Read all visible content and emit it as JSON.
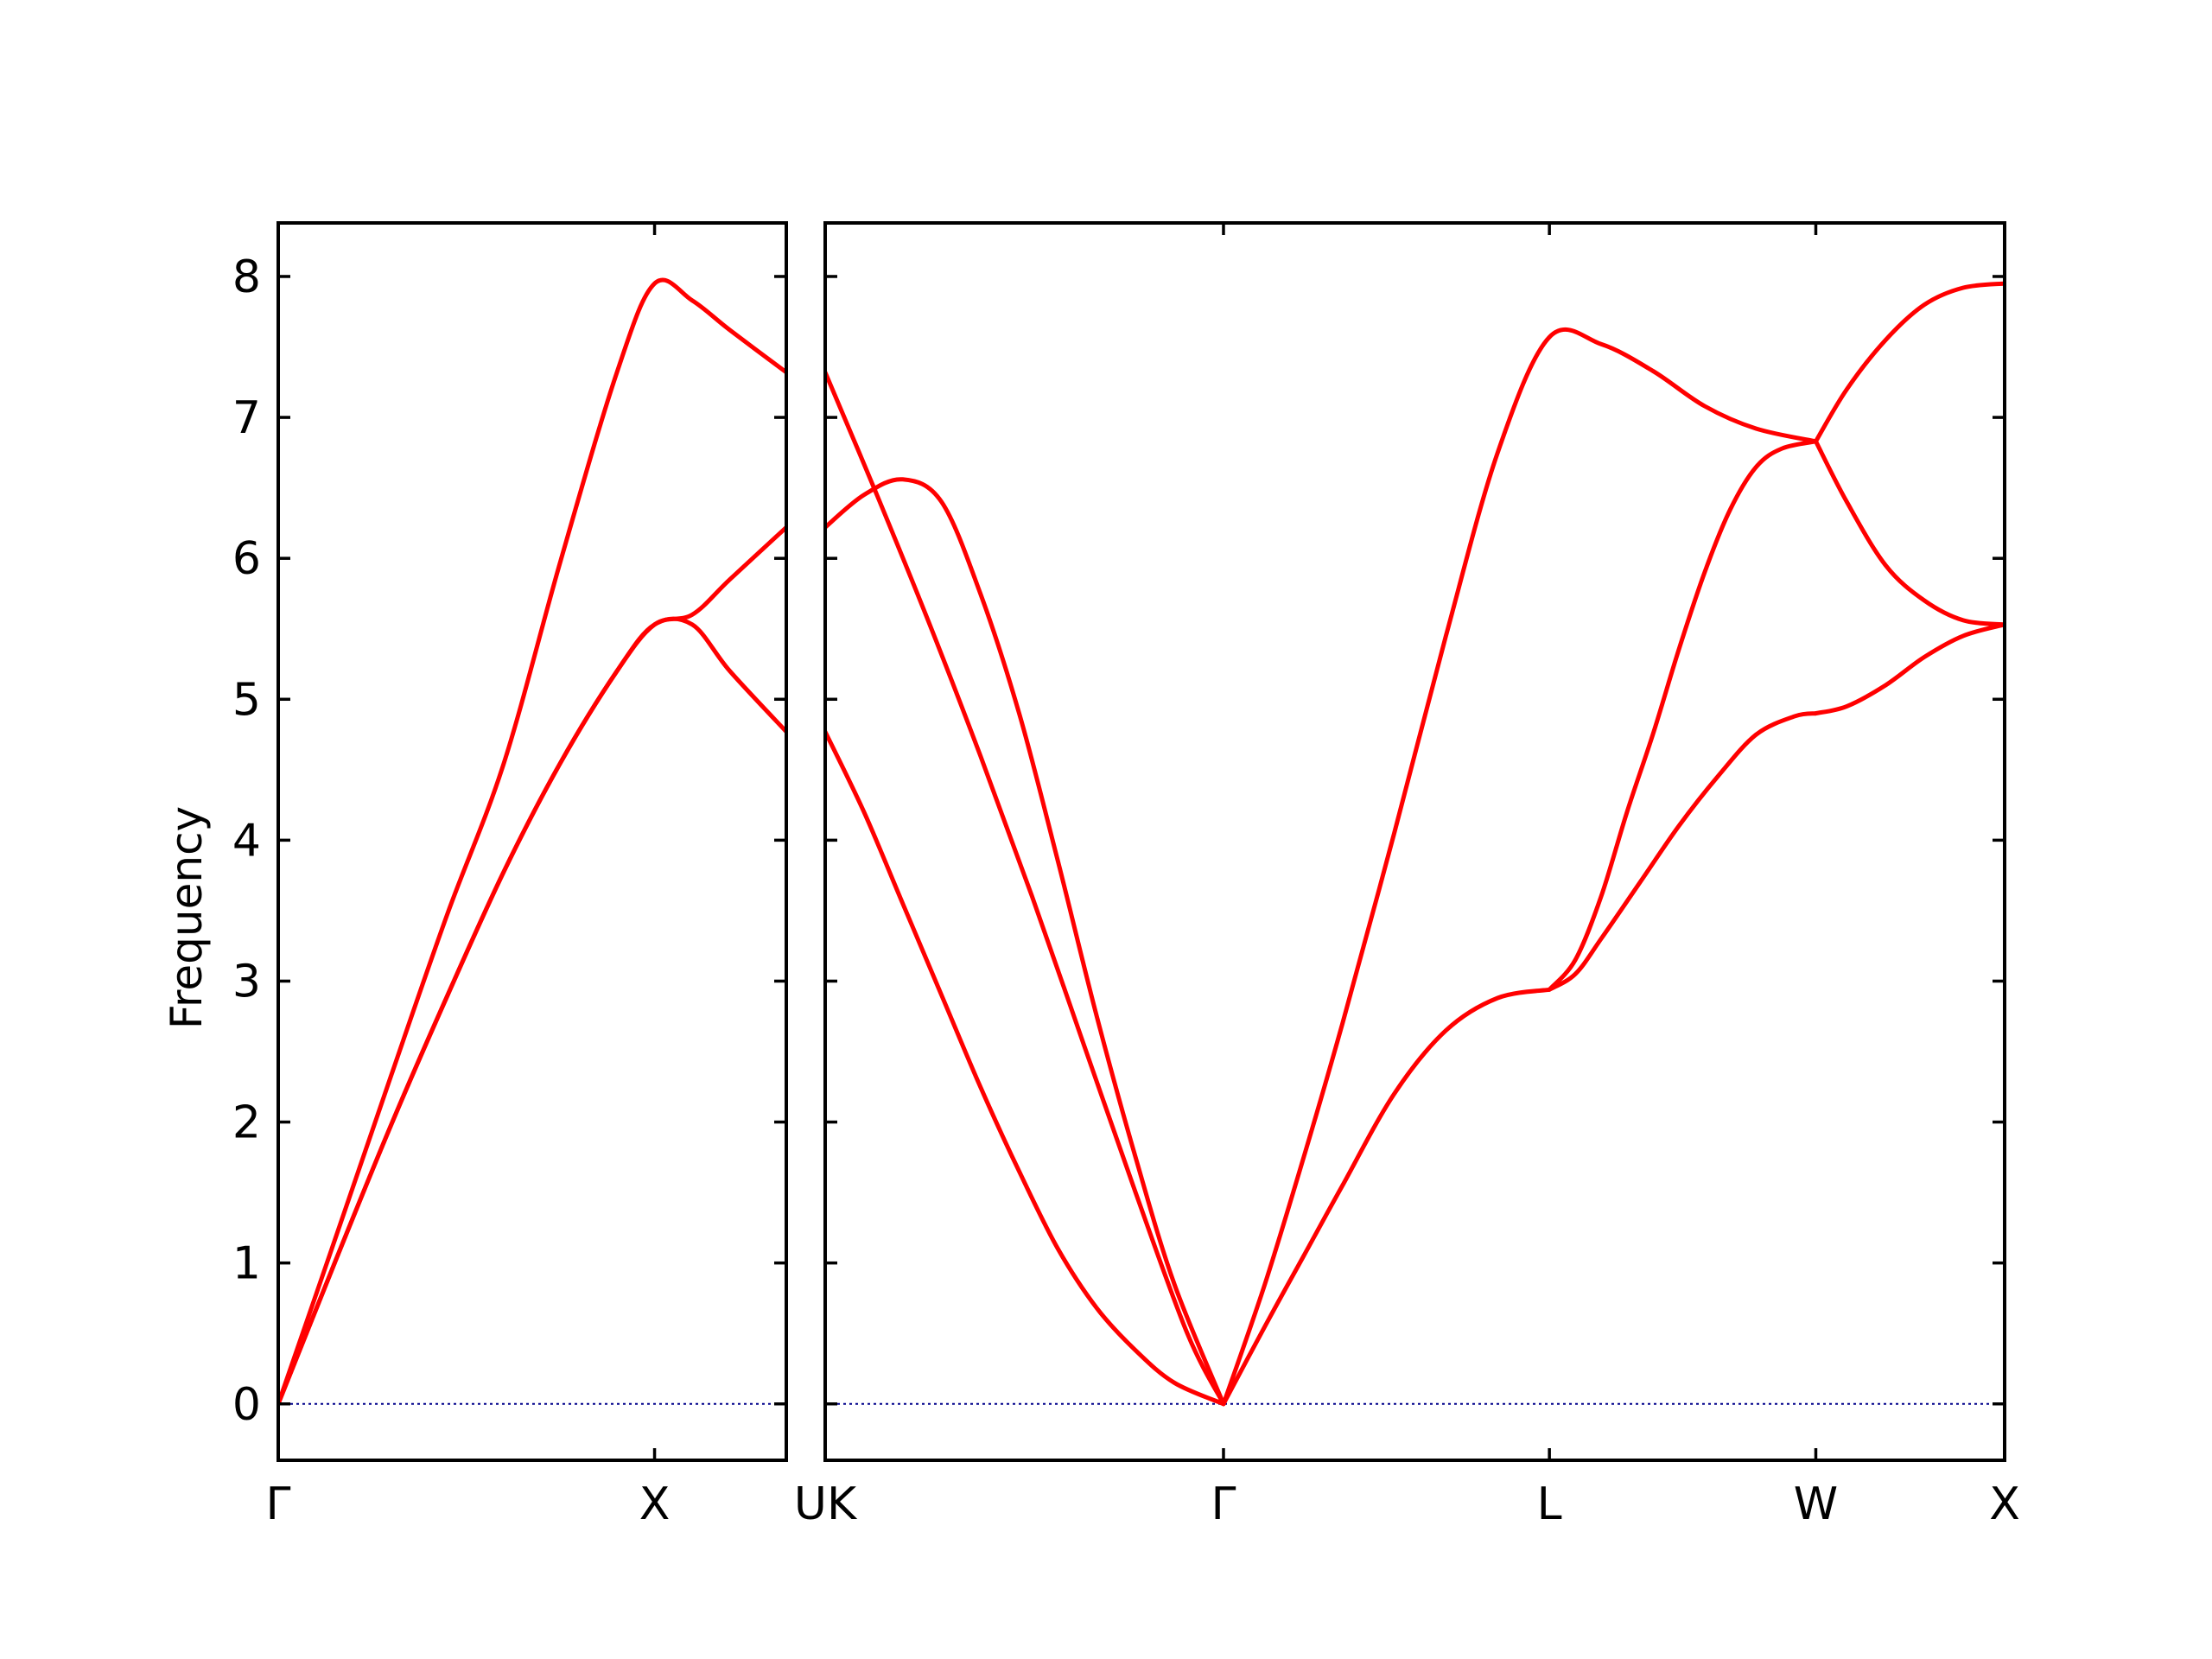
{
  "chart_data": {
    "type": "line",
    "title": "",
    "ylabel": "Frequency",
    "ylim": [
      -0.4,
      8.38
    ],
    "yticks": [
      0,
      1,
      2,
      3,
      4,
      5,
      6,
      7,
      8
    ],
    "grid": false,
    "band_color": "#ff0000",
    "zero_line_color": "#00008b",
    "zero_line": 0,
    "panels": [
      {
        "xlim": [
          0,
          1.35
        ],
        "xticks": [
          {
            "x": 0,
            "label": "Γ"
          },
          {
            "x": 1.0,
            "label": "X"
          }
        ],
        "series": [
          {
            "x": [
              0,
              0.15,
              0.3,
              0.45,
              0.6,
              0.75,
              0.9,
              1.0,
              1.1,
              1.2,
              1.35
            ],
            "values": [
              0,
              1.16,
              2.33,
              3.48,
              4.55,
              5.98,
              7.32,
              7.95,
              7.83,
              7.62,
              7.32
            ]
          },
          {
            "x": [
              0,
              0.15,
              0.3,
              0.45,
              0.6,
              0.75,
              0.9,
              1.0,
              1.1,
              1.2,
              1.35
            ],
            "values": [
              0,
              1.0,
              1.98,
              2.9,
              3.78,
              4.55,
              5.2,
              5.53,
              5.53,
              5.2,
              4.77
            ]
          },
          {
            "x": [
              0,
              0.15,
              0.3,
              0.45,
              0.6,
              0.75,
              0.9,
              1.0,
              1.1,
              1.2,
              1.35
            ],
            "values": [
              0,
              1.0,
              1.98,
              2.9,
              3.78,
              4.55,
              5.2,
              5.53,
              5.6,
              5.85,
              6.22
            ]
          }
        ]
      },
      {
        "xlim": [
          0,
          4.56
        ],
        "xticks": [
          {
            "x": 0,
            "label": "UK"
          },
          {
            "x": 1.54,
            "label": "Γ"
          },
          {
            "x": 2.8,
            "label": "L"
          },
          {
            "x": 3.83,
            "label": "W"
          },
          {
            "x": 4.56,
            "label": "X"
          }
        ],
        "series": [
          {
            "x": [
              0,
              0.2,
              0.4,
              0.6,
              0.8,
              1.0,
              1.2,
              1.4,
              1.54
            ],
            "values": [
              7.32,
              6.45,
              5.55,
              4.6,
              3.6,
              2.55,
              1.5,
              0.5,
              0
            ]
          },
          {
            "x": [
              0,
              0.15,
              0.3,
              0.45,
              0.6,
              0.75,
              0.9,
              1.05,
              1.2,
              1.35,
              1.54
            ],
            "values": [
              6.22,
              6.45,
              6.56,
              6.4,
              5.75,
              4.9,
              3.85,
              2.75,
              1.75,
              0.85,
              0
            ]
          },
          {
            "x": [
              0,
              0.15,
              0.3,
              0.45,
              0.6,
              0.75,
              0.9,
              1.05,
              1.2,
              1.35,
              1.54
            ],
            "values": [
              4.77,
              4.2,
              3.55,
              2.9,
              2.25,
              1.65,
              1.1,
              0.68,
              0.38,
              0.15,
              0
            ]
          },
          {
            "x": [
              1.54,
              1.7,
              1.85,
              2.0,
              2.2,
              2.4,
              2.6,
              2.8,
              3.0,
              3.2,
              3.4,
              3.6,
              3.83
            ],
            "values": [
              0,
              0.85,
              1.75,
              2.7,
              4.05,
              5.45,
              6.75,
              7.57,
              7.52,
              7.33,
              7.08,
              6.92,
              6.83
            ]
          },
          {
            "x": [
              1.54,
              1.7,
              1.85,
              2.0,
              2.2,
              2.4,
              2.6,
              2.8
            ],
            "values": [
              0,
              0.55,
              1.05,
              1.55,
              2.2,
              2.65,
              2.88,
              2.94
            ]
          },
          {
            "x": [
              2.8,
              2.9,
              3.0,
              3.1,
              3.2,
              3.3,
              3.4,
              3.5,
              3.6,
              3.7,
              3.83
            ],
            "values": [
              2.94,
              3.15,
              3.6,
              4.2,
              4.75,
              5.35,
              5.9,
              6.35,
              6.65,
              6.78,
              6.83
            ]
          },
          {
            "x": [
              2.8,
              2.9,
              3.0,
              3.15,
              3.3,
              3.45,
              3.6,
              3.75,
              3.83
            ],
            "values": [
              2.94,
              3.05,
              3.3,
              3.7,
              4.1,
              4.45,
              4.75,
              4.88,
              4.9
            ]
          },
          {
            "x": [
              3.83,
              3.95,
              4.1,
              4.25,
              4.4,
              4.56
            ],
            "values": [
              6.83,
              7.2,
              7.55,
              7.8,
              7.92,
              7.95
            ]
          },
          {
            "x": [
              3.83,
              3.95,
              4.1,
              4.25,
              4.4,
              4.56
            ],
            "values": [
              6.83,
              6.4,
              5.95,
              5.7,
              5.56,
              5.53
            ]
          },
          {
            "x": [
              3.83,
              3.95,
              4.1,
              4.25,
              4.4,
              4.56
            ],
            "values": [
              4.9,
              4.95,
              5.1,
              5.3,
              5.45,
              5.53
            ]
          }
        ]
      }
    ]
  }
}
